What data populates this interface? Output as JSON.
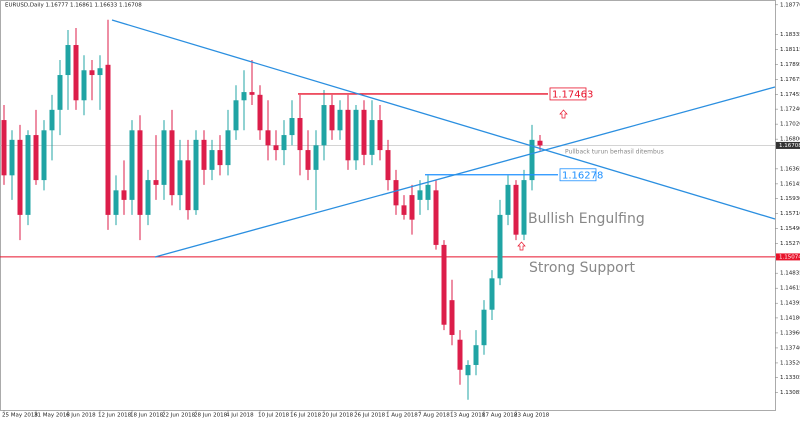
{
  "chart_data": {
    "type": "candlestick",
    "title": "EURUSD,Daily 1.16777 1.16861 1.16633 1.16708",
    "up_color": "#20a4a4",
    "down_color": "#dc1e4a",
    "xlim": [
      -0.5,
      96.375
    ],
    "ylim": [
      1.1283,
      1.1884
    ],
    "open": [
      1.1708,
      1.1627,
      1.1679,
      1.1569,
      1.1686,
      1.162,
      1.1693,
      1.1723,
      1.1774,
      1.1818,
      1.1737,
      1.1781,
      1.1774,
      1.1789,
      1.1569,
      1.1605,
      1.1591,
      1.1693,
      1.1569,
      1.162,
      1.1613,
      1.1693,
      1.1598,
      1.1649,
      1.1576,
      1.1679,
      1.1635,
      1.1664,
      1.1642,
      1.1693,
      1.1737,
      1.1749,
      1.1745,
      1.1693,
      1.1671,
      1.1664,
      1.1686,
      1.1711,
      1.1664,
      1.1635,
      1.1671,
      1.173,
      1.1693,
      1.1723,
      1.1649,
      1.1723,
      1.1657,
      1.1708,
      1.1664,
      1.162,
      1.1583,
      1.1598,
      1.1591,
      1.1591,
      1.1605,
      1.1525,
      1.1444,
      1.1386,
      1.1334,
      1.1349,
      1.1378,
      1.143,
      1.1476,
      1.1569,
      1.1613,
      1.154,
      1.162,
      1.16777
    ],
    "high": [
      1.173,
      1.1693,
      1.1701,
      1.1693,
      1.1723,
      1.1708,
      1.1745,
      1.1796,
      1.184,
      1.1843,
      1.1803,
      1.1796,
      1.1803,
      1.1855,
      1.1627,
      1.1649,
      1.1708,
      1.1715,
      1.1635,
      1.1686,
      1.1708,
      1.1723,
      1.1679,
      1.1679,
      1.1693,
      1.1693,
      1.1679,
      1.1686,
      1.1723,
      1.1759,
      1.1781,
      1.1796,
      1.1759,
      1.1737,
      1.1693,
      1.1708,
      1.1737,
      1.1745,
      1.1693,
      1.1693,
      1.1752,
      1.1745,
      1.1737,
      1.1745,
      1.173,
      1.1737,
      1.1737,
      1.173,
      1.1679,
      1.1635,
      1.1598,
      1.1613,
      1.162,
      1.1627,
      1.162,
      1.1532,
      1.1474,
      1.14,
      1.1356,
      1.14,
      1.1444,
      1.1488,
      1.1591,
      1.1627,
      1.162,
      1.1635,
      1.1701,
      1.16861
    ],
    "low": [
      1.1613,
      1.1591,
      1.1532,
      1.1554,
      1.1613,
      1.1605,
      1.1649,
      1.1686,
      1.1723,
      1.1723,
      1.1715,
      1.1737,
      1.1723,
      1.1547,
      1.1554,
      1.1569,
      1.1569,
      1.1532,
      1.1554,
      1.1591,
      1.1591,
      1.1583,
      1.1576,
      1.1562,
      1.1569,
      1.1613,
      1.162,
      1.1627,
      1.1627,
      1.1679,
      1.1693,
      1.173,
      1.1679,
      1.1649,
      1.1649,
      1.1642,
      1.1671,
      1.1627,
      1.162,
      1.1576,
      1.1649,
      1.1679,
      1.1679,
      1.1635,
      1.1635,
      1.1642,
      1.1642,
      1.1649,
      1.1605,
      1.1569,
      1.1562,
      1.154,
      1.1569,
      1.1576,
      1.1518,
      1.14,
      1.1378,
      1.132,
      1.1298,
      1.1334,
      1.1364,
      1.1415,
      1.1466,
      1.1554,
      1.1532,
      1.1532,
      1.1605,
      1.16633
    ],
    "close": [
      1.1627,
      1.1679,
      1.1569,
      1.1686,
      1.162,
      1.1693,
      1.1723,
      1.1774,
      1.1818,
      1.1737,
      1.1781,
      1.1774,
      1.1784,
      1.1569,
      1.1605,
      1.1591,
      1.1693,
      1.1569,
      1.162,
      1.1613,
      1.1693,
      1.1598,
      1.1649,
      1.1576,
      1.1679,
      1.1635,
      1.1664,
      1.1642,
      1.1693,
      1.1737,
      1.1749,
      1.1745,
      1.1693,
      1.1671,
      1.1664,
      1.1686,
      1.1711,
      1.1664,
      1.1635,
      1.1671,
      1.173,
      1.1693,
      1.1723,
      1.1649,
      1.1723,
      1.1657,
      1.1708,
      1.1664,
      1.162,
      1.1583,
      1.1569,
      1.1562,
      1.1605,
      1.1613,
      1.1525,
      1.1408,
      1.1393,
      1.1342,
      1.1349,
      1.1378,
      1.143,
      1.1476,
      1.1569,
      1.1613,
      1.154,
      1.162,
      1.1679,
      1.16708
    ],
    "xticks": [
      {
        "value": 0,
        "label": "25 May 2018"
      },
      {
        "value": 4,
        "label": "31 May 2018"
      },
      {
        "value": 8,
        "label": "6 Jun 2018"
      },
      {
        "value": 12,
        "label": "12 Jun 2018"
      },
      {
        "value": 16,
        "label": "18 Jun 2018"
      },
      {
        "value": 20,
        "label": "22 Jun 2018"
      },
      {
        "value": 24,
        "label": "28 Jun 2018"
      },
      {
        "value": 28,
        "label": "4 Jul 2018"
      },
      {
        "value": 32,
        "label": "10 Jul 2018"
      },
      {
        "value": 36,
        "label": "16 Jul 2018"
      },
      {
        "value": 40,
        "label": "20 Jul 2018"
      },
      {
        "value": 44,
        "label": "26 Jul 2018"
      },
      {
        "value": 48,
        "label": "1 Aug 2018"
      },
      {
        "value": 52,
        "label": "7 Aug 2018"
      },
      {
        "value": 56,
        "label": "13 Aug 2018"
      },
      {
        "value": 60,
        "label": "17 Aug 2018"
      },
      {
        "value": 64,
        "label": "23 Aug 2018"
      }
    ],
    "yticks": [
      {
        "value": 1.1877,
        "label": "1.18770"
      },
      1.18335,
      1.18115,
      1.17895,
      1.17675,
      1.17455,
      {
        "value": 1.1724,
        "label": "1.17240"
      },
      {
        "value": 1.1702,
        "label": "1.17020"
      },
      {
        "value": 1.168,
        "label": "1.16800"
      },
      1.16365,
      1.16145,
      {
        "value": 1.1593,
        "label": "1.15930"
      },
      {
        "value": 1.1571,
        "label": "1.15710"
      },
      {
        "value": 1.1549,
        "label": "1.15490"
      },
      {
        "value": 1.1527,
        "label": "1.15270"
      },
      1.14835,
      1.14615,
      1.14395,
      {
        "value": 1.1418,
        "label": "1.14180"
      },
      {
        "value": 1.1396,
        "label": "1.13960"
      },
      {
        "value": 1.1374,
        "label": "1.13740"
      },
      {
        "value": 1.1352,
        "label": "1.13520"
      },
      1.13305,
      1.13085
    ],
    "current_price": 1.16708,
    "support": 1.15074,
    "levels": [
      {
        "value": 1.17463,
        "color": "#e8132b"
      },
      {
        "value": 1.16278,
        "color": "#1e90ff"
      }
    ],
    "annotations": [
      "Pullback turun berhasil ditembus",
      "Bullish Engulfing",
      "Strong Support"
    ]
  }
}
